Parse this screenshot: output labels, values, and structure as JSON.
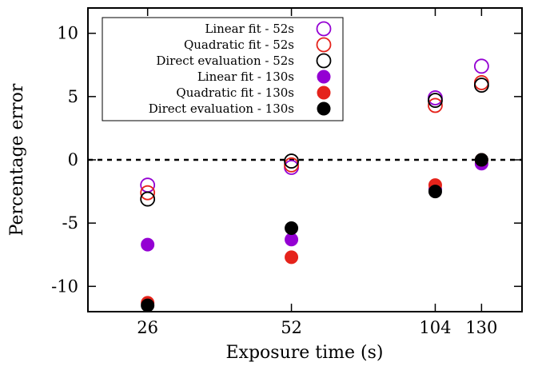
{
  "chart_data": {
    "type": "scatter",
    "xlabel": "Exposure time (s)",
    "ylabel": "Percentage error",
    "x_ticks": [
      26,
      52,
      104,
      130
    ],
    "x_tick_labels": [
      "26",
      "52",
      "104",
      "130"
    ],
    "y_ticks": [
      10,
      5,
      0,
      -5,
      -10
    ],
    "y_tick_labels": [
      "10",
      "5",
      "0",
      "-5",
      "-10"
    ],
    "ylim": [
      -12,
      12
    ],
    "x_scale": "log",
    "xlim": [
      19.5,
      158
    ],
    "grid": false,
    "legend_position": "top-left",
    "zero_line": {
      "y": 0,
      "style": "dashed"
    },
    "series": [
      {
        "name": "Linear fit - 52s",
        "marker": "open-circle",
        "color": "#9400D3",
        "x": [
          26,
          52,
          104,
          130
        ],
        "y": [
          -2.0,
          -0.6,
          4.9,
          7.4
        ]
      },
      {
        "name": "Quadratic fit - 52s",
        "marker": "open-circle",
        "color": "#E5231B",
        "x": [
          26,
          52,
          104,
          130
        ],
        "y": [
          -2.6,
          -0.4,
          4.3,
          6.1
        ]
      },
      {
        "name": "Direct evaluation - 52s",
        "marker": "open-circle",
        "color": "#000000",
        "x": [
          26,
          52,
          104,
          130
        ],
        "y": [
          -3.1,
          -0.1,
          4.7,
          5.9
        ]
      },
      {
        "name": "Linear fit - 130s",
        "marker": "filled-circle",
        "color": "#9400D3",
        "x": [
          26,
          52,
          104,
          130
        ],
        "y": [
          -6.7,
          -6.3,
          -2.3,
          -0.3
        ]
      },
      {
        "name": "Quadratic fit - 130s",
        "marker": "filled-circle",
        "color": "#E5231B",
        "x": [
          26,
          52,
          104,
          130
        ],
        "y": [
          -11.3,
          -7.7,
          -2.0,
          0.0
        ]
      },
      {
        "name": "Direct evaluation - 130s",
        "marker": "filled-circle",
        "color": "#000000",
        "x": [
          26,
          52,
          104,
          130
        ],
        "y": [
          -11.5,
          -5.4,
          -2.5,
          0.0
        ]
      }
    ]
  }
}
